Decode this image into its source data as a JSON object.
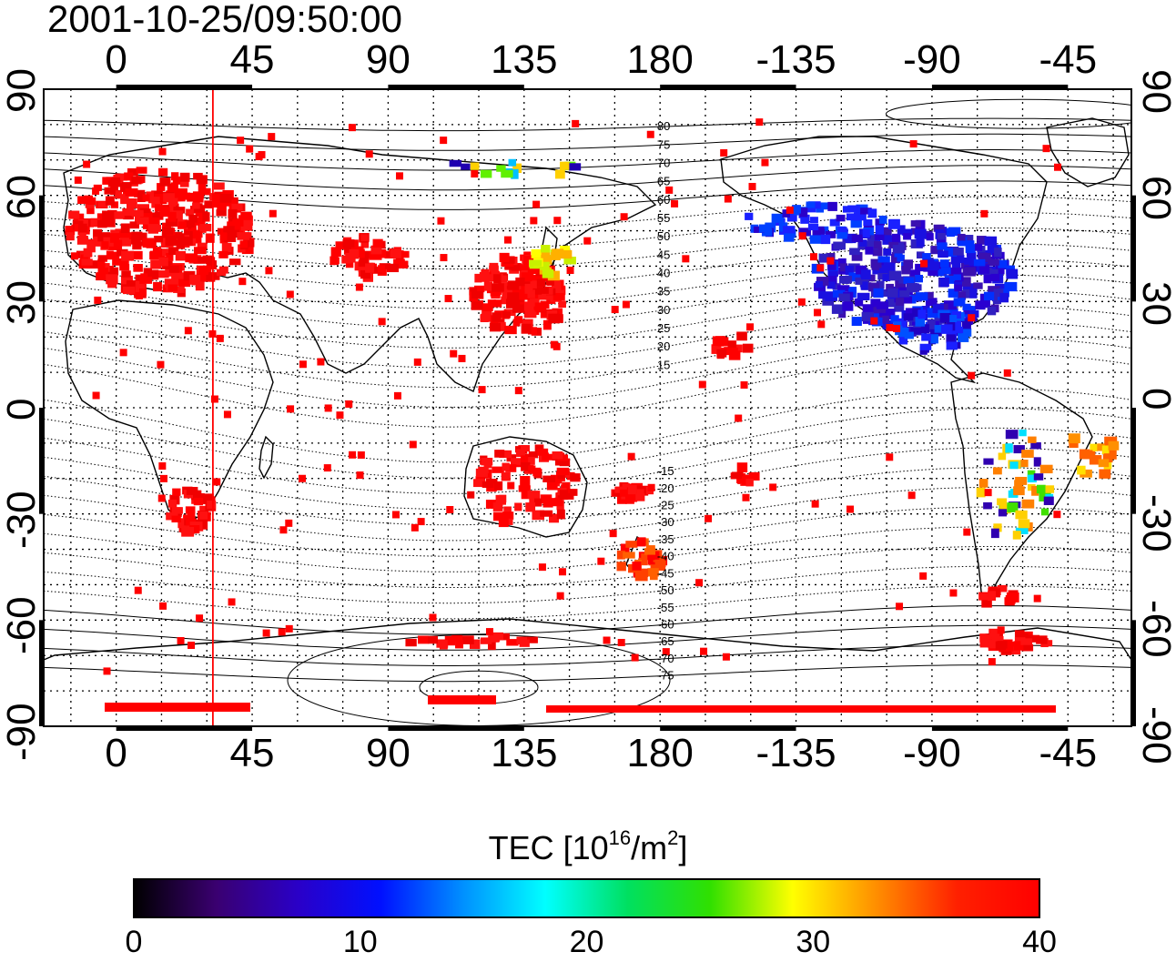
{
  "title": "2001-10-25/09:50:00",
  "map": {
    "projection": "equirectangular",
    "lon_range_deg": [
      -24,
      336
    ],
    "lat_range_deg": [
      -90,
      90
    ],
    "top_ticks": [
      "0",
      "45",
      "90",
      "135",
      "180",
      "-135",
      "-90",
      "-45"
    ],
    "bottom_ticks": [
      "0",
      "45",
      "90",
      "135",
      "180",
      "-135",
      "-90",
      "-45"
    ],
    "left_ticks": [
      "90",
      "60",
      "30",
      "0",
      "-30",
      "-60",
      "-90"
    ],
    "right_ticks": [
      "90",
      "60",
      "30",
      "0",
      "-30",
      "-60",
      "-90"
    ],
    "marker_line_lon_deg": 32,
    "marker_line_color": "#ff0000",
    "contour_labels_north": [
      "80",
      "75",
      "70",
      "65",
      "60",
      "55",
      "50",
      "45",
      "40",
      "35",
      "30",
      "25",
      "20",
      "15"
    ],
    "contour_labels_south": [
      "-15",
      "-20",
      "-25",
      "-30",
      "-35",
      "-40",
      "-45",
      "-50",
      "-55",
      "-60",
      "-65",
      "-70",
      "-75"
    ]
  },
  "colorbar": {
    "title_prefix": "TEC  [10",
    "title_exp1": "16",
    "title_mid": "/m",
    "title_exp2": "2",
    "title_suffix": "]",
    "min": 0,
    "max": 40,
    "tick_labels": [
      "0",
      "10",
      "20",
      "30",
      "40"
    ],
    "colormap": [
      "#000000",
      "#3a0070",
      "#2a00c8",
      "#0010ff",
      "#0090ff",
      "#00ffff",
      "#00e060",
      "#30e000",
      "#ffff00",
      "#ff9000",
      "#ff2000",
      "#ff0000"
    ]
  },
  "colors": {
    "high_tec": "#ff0000",
    "low_tec": "#1a10e0"
  }
}
